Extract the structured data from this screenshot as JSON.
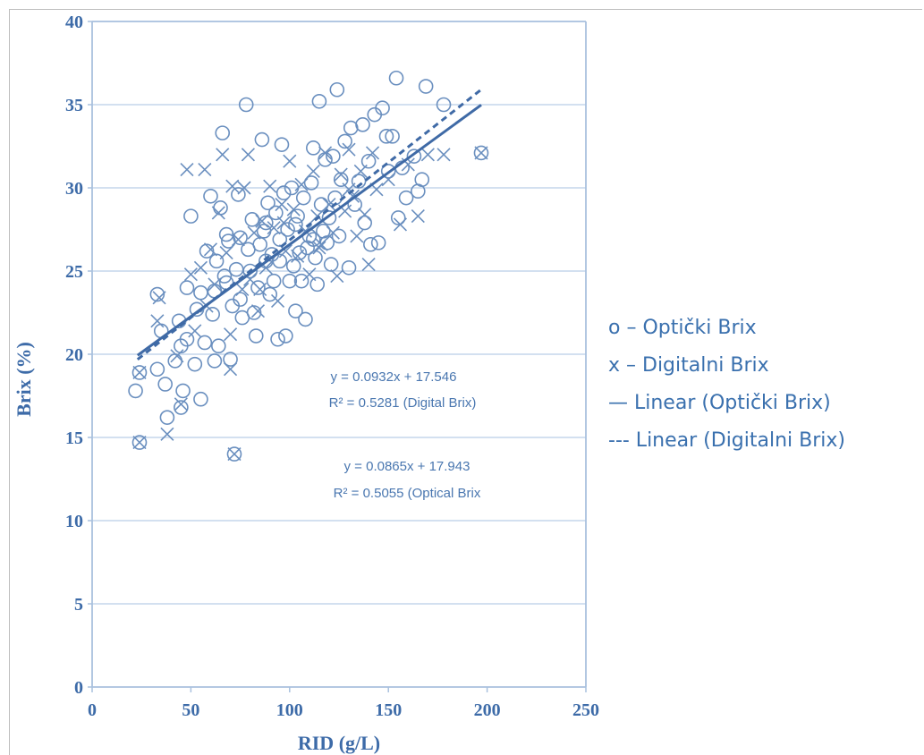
{
  "chart_data": {
    "type": "scatter",
    "title": "",
    "xlabel": "RID (g/L)",
    "ylabel": "Brix (%)",
    "xlim": [
      0,
      250
    ],
    "ylim": [
      0,
      40
    ],
    "x_ticks": [
      "0",
      "50",
      "100",
      "150",
      "200",
      "250"
    ],
    "y_ticks": [
      "0",
      "5",
      "10",
      "15",
      "20",
      "25",
      "30",
      "35",
      "40"
    ],
    "grid": "horizontal",
    "legend_placement": "right",
    "colors": {
      "axis": "#a9c1de",
      "grid": "#b9cde6",
      "marker": "#6a8fbf",
      "text": "#3d6ba8",
      "legend": "#3a70ae"
    },
    "series": [
      {
        "name": "Optički Brix",
        "marker": "circle",
        "points": [
          [
            22,
            17.8
          ],
          [
            24,
            14.7
          ],
          [
            24,
            18.9
          ],
          [
            33,
            19.1
          ],
          [
            33,
            23.6
          ],
          [
            35,
            21.4
          ],
          [
            37,
            18.2
          ],
          [
            38,
            16.2
          ],
          [
            42,
            19.6
          ],
          [
            44,
            22.0
          ],
          [
            45,
            16.8
          ],
          [
            46,
            17.8
          ],
          [
            48,
            20.9
          ],
          [
            48,
            24.0
          ],
          [
            50,
            28.3
          ],
          [
            52,
            19.4
          ],
          [
            53,
            22.7
          ],
          [
            55,
            23.7
          ],
          [
            55,
            17.3
          ],
          [
            57,
            20.7
          ],
          [
            58,
            26.2
          ],
          [
            60,
            29.5
          ],
          [
            61,
            22.4
          ],
          [
            62,
            23.8
          ],
          [
            63,
            25.6
          ],
          [
            64,
            20.5
          ],
          [
            65,
            28.8
          ],
          [
            66,
            33.3
          ],
          [
            67,
            24.7
          ],
          [
            68,
            27.2
          ],
          [
            69,
            26.8
          ],
          [
            70,
            19.7
          ],
          [
            71,
            22.9
          ],
          [
            72,
            14.0
          ],
          [
            73,
            25.1
          ],
          [
            74,
            29.6
          ],
          [
            75,
            23.3
          ],
          [
            76,
            22.2
          ],
          [
            78,
            35.0
          ],
          [
            79,
            26.3
          ],
          [
            80,
            25.0
          ],
          [
            81,
            28.1
          ],
          [
            82,
            22.5
          ],
          [
            83,
            21.1
          ],
          [
            84,
            24.0
          ],
          [
            85,
            26.6
          ],
          [
            86,
            32.9
          ],
          [
            87,
            27.4
          ],
          [
            88,
            25.6
          ],
          [
            89,
            29.1
          ],
          [
            90,
            23.6
          ],
          [
            91,
            26.0
          ],
          [
            92,
            24.4
          ],
          [
            93,
            28.5
          ],
          [
            94,
            20.9
          ],
          [
            95,
            26.9
          ],
          [
            96,
            32.6
          ],
          [
            97,
            29.7
          ],
          [
            98,
            21.1
          ],
          [
            99,
            27.5
          ],
          [
            100,
            24.4
          ],
          [
            101,
            30.0
          ],
          [
            102,
            25.3
          ],
          [
            103,
            22.6
          ],
          [
            104,
            28.3
          ],
          [
            105,
            26.1
          ],
          [
            106,
            24.4
          ],
          [
            107,
            29.4
          ],
          [
            108,
            22.1
          ],
          [
            109,
            26.4
          ],
          [
            110,
            27.1
          ],
          [
            111,
            30.3
          ],
          [
            112,
            32.4
          ],
          [
            113,
            25.8
          ],
          [
            114,
            24.2
          ],
          [
            115,
            35.2
          ],
          [
            116,
            29.0
          ],
          [
            117,
            27.4
          ],
          [
            118,
            31.7
          ],
          [
            119,
            26.7
          ],
          [
            120,
            28.2
          ],
          [
            121,
            25.4
          ],
          [
            122,
            31.9
          ],
          [
            124,
            35.9
          ],
          [
            125,
            27.1
          ],
          [
            126,
            30.5
          ],
          [
            128,
            32.8
          ],
          [
            130,
            25.2
          ],
          [
            131,
            33.6
          ],
          [
            133,
            29.0
          ],
          [
            135,
            30.4
          ],
          [
            137,
            33.8
          ],
          [
            138,
            27.9
          ],
          [
            140,
            31.6
          ],
          [
            141,
            26.6
          ],
          [
            143,
            34.4
          ],
          [
            145,
            26.7
          ],
          [
            147,
            34.8
          ],
          [
            149,
            33.1
          ],
          [
            150,
            31.0
          ],
          [
            152,
            33.1
          ],
          [
            154,
            36.6
          ],
          [
            155,
            28.2
          ],
          [
            157,
            31.2
          ],
          [
            159,
            29.4
          ],
          [
            163,
            31.9
          ],
          [
            165,
            29.8
          ],
          [
            167,
            30.5
          ],
          [
            169,
            36.1
          ],
          [
            178,
            35.0
          ],
          [
            197,
            32.1
          ],
          [
            45,
            20.5
          ],
          [
            62,
            19.6
          ],
          [
            68,
            24.3
          ],
          [
            75,
            27.0
          ],
          [
            88,
            27.9
          ],
          [
            95,
            25.6
          ],
          [
            103,
            27.8
          ],
          [
            112,
            26.9
          ],
          [
            123,
            29.4
          ]
        ]
      },
      {
        "name": "Digitalni Brix",
        "marker": "x",
        "points": [
          [
            24,
            14.7
          ],
          [
            24,
            18.9
          ],
          [
            33,
            22.0
          ],
          [
            34,
            23.4
          ],
          [
            38,
            15.2
          ],
          [
            43,
            19.9
          ],
          [
            45,
            17.0
          ],
          [
            48,
            31.1
          ],
          [
            50,
            24.8
          ],
          [
            52,
            21.4
          ],
          [
            55,
            25.2
          ],
          [
            57,
            31.1
          ],
          [
            58,
            22.9
          ],
          [
            60,
            26.3
          ],
          [
            62,
            24.2
          ],
          [
            64,
            28.5
          ],
          [
            66,
            32.0
          ],
          [
            68,
            26.1
          ],
          [
            70,
            19.1
          ],
          [
            71,
            30.1
          ],
          [
            72,
            14.0
          ],
          [
            74,
            26.9
          ],
          [
            76,
            23.9
          ],
          [
            77,
            30.0
          ],
          [
            79,
            32.0
          ],
          [
            80,
            24.5
          ],
          [
            82,
            27.3
          ],
          [
            84,
            22.6
          ],
          [
            86,
            28.0
          ],
          [
            88,
            25.2
          ],
          [
            90,
            30.1
          ],
          [
            92,
            27.6
          ],
          [
            94,
            23.2
          ],
          [
            96,
            29.0
          ],
          [
            98,
            26.2
          ],
          [
            100,
            31.6
          ],
          [
            102,
            28.7
          ],
          [
            104,
            25.9
          ],
          [
            106,
            30.2
          ],
          [
            108,
            27.4
          ],
          [
            110,
            24.8
          ],
          [
            112,
            31.0
          ],
          [
            114,
            28.3
          ],
          [
            116,
            26.6
          ],
          [
            118,
            32.1
          ],
          [
            120,
            29.0
          ],
          [
            122,
            27.3
          ],
          [
            124,
            24.7
          ],
          [
            126,
            30.8
          ],
          [
            128,
            28.6
          ],
          [
            130,
            32.3
          ],
          [
            132,
            29.5
          ],
          [
            134,
            27.1
          ],
          [
            136,
            31.0
          ],
          [
            138,
            28.4
          ],
          [
            140,
            25.4
          ],
          [
            142,
            32.1
          ],
          [
            144,
            29.9
          ],
          [
            150,
            30.5
          ],
          [
            156,
            27.8
          ],
          [
            160,
            31.4
          ],
          [
            165,
            28.3
          ],
          [
            170,
            32.0
          ],
          [
            178,
            32.0
          ],
          [
            197,
            32.1
          ],
          [
            70,
            21.2
          ],
          [
            85,
            23.9
          ],
          [
            97,
            27.9
          ],
          [
            115,
            26.4
          ],
          [
            130,
            29.9
          ]
        ]
      },
      {
        "name": "Linear (Optički Brix)",
        "type": "line",
        "style": "solid",
        "slope": 0.0865,
        "intercept": 17.943,
        "x_range": [
          23,
          197
        ]
      },
      {
        "name": "Linear (Digitalni Brix)",
        "type": "line",
        "style": "dashed",
        "slope": 0.0932,
        "intercept": 17.546,
        "x_range": [
          23,
          197
        ]
      }
    ],
    "annotations": [
      {
        "line1": "y = 0.0932x + 17.546",
        "line2": "R² = 0.5281 (Digital Brix)"
      },
      {
        "line1": "y = 0.0865x + 17.943",
        "line2": "R² = 0.5055 (Optical Brix"
      }
    ],
    "legend": [
      "o – Optički Brix",
      "x – Digitalni Brix",
      "—  Linear (Optički Brix)",
      "---  Linear (Digitalni Brix)"
    ]
  }
}
